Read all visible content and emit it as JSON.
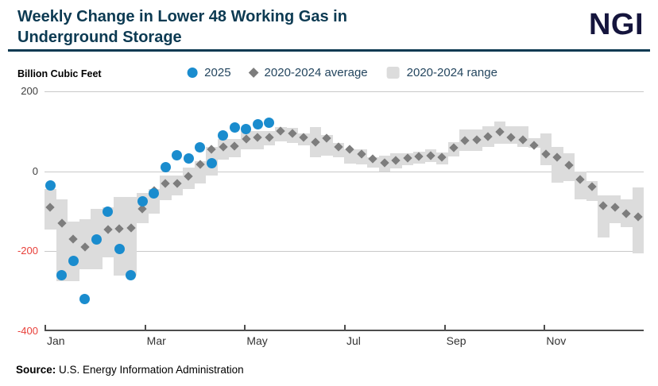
{
  "header": {
    "title": "Weekly Change in Lower 48 Working Gas in Underground Storage",
    "logo": "NGI"
  },
  "legend": {
    "axis_unit": "Billion Cubic Feet",
    "items": [
      {
        "label": "2025",
        "marker": "circle-icon",
        "color": "#1a8cce"
      },
      {
        "label": "2020-2024 average",
        "marker": "diamond-icon",
        "color": "#7d7d7d"
      },
      {
        "label": "2020-2024 range",
        "marker": "square-icon",
        "color": "#dcdcdc"
      }
    ]
  },
  "chart_data": {
    "type": "scatter",
    "title": "Weekly Change in Lower 48 Working Gas in Underground Storage",
    "ylabel": "Billion Cubic Feet",
    "ylim": [
      -400,
      200
    ],
    "yticks": [
      200,
      0,
      -200,
      -400
    ],
    "grid": "horizontal",
    "legend_position": "top-center",
    "weeks": 52,
    "months_total": 12,
    "x_axis": {
      "labels": [
        "Jan",
        "Mar",
        "May",
        "Jul",
        "Sep",
        "Nov"
      ],
      "month_index": [
        0,
        2,
        4,
        6,
        8,
        10
      ]
    },
    "series": [
      {
        "name": "2025",
        "type": "points",
        "marker": "circle",
        "color": "#1a8cce",
        "values": [
          -35,
          -260,
          -225,
          -320,
          -170,
          -100,
          -195,
          -260,
          -75,
          -55,
          10,
          40,
          33,
          60,
          20,
          90,
          110,
          105,
          118,
          122
        ]
      },
      {
        "name": "2020-2024 average",
        "type": "points",
        "marker": "diamond",
        "color": "#7d7d7d",
        "values": [
          -90,
          -130,
          -170,
          -190,
          -170,
          -145,
          -143,
          -142,
          -94,
          -48,
          -30,
          -30,
          -13,
          18,
          55,
          60,
          62,
          80,
          85,
          85,
          100,
          95,
          85,
          72,
          82,
          60,
          54,
          44,
          32,
          22,
          28,
          33,
          38,
          40,
          35,
          58,
          76,
          78,
          87,
          98,
          85,
          79,
          64,
          44,
          36,
          16,
          -21,
          -39,
          -86,
          -91,
          -106,
          -114
        ]
      },
      {
        "name": "2020-2024 range",
        "type": "band",
        "color": "#dcdcdc",
        "min": [
          -145,
          -275,
          -275,
          -245,
          -245,
          -215,
          -260,
          -260,
          -130,
          -105,
          -72,
          -60,
          -45,
          -30,
          -10,
          30,
          35,
          55,
          55,
          65,
          75,
          70,
          65,
          35,
          40,
          35,
          20,
          18,
          10,
          0,
          8,
          15,
          20,
          23,
          18,
          38,
          50,
          50,
          60,
          68,
          68,
          60,
          58,
          15,
          -28,
          -25,
          -70,
          -75,
          -165,
          -130,
          -140,
          -205
        ],
        "max": [
          -45,
          -70,
          -125,
          -120,
          -95,
          -90,
          -65,
          -65,
          -55,
          -45,
          -10,
          -10,
          10,
          25,
          60,
          80,
          80,
          100,
          100,
          100,
          110,
          108,
          95,
          110,
          90,
          70,
          55,
          55,
          35,
          40,
          45,
          45,
          50,
          55,
          48,
          72,
          105,
          105,
          113,
          125,
          113,
          113,
          82,
          95,
          60,
          45,
          0,
          -25,
          -60,
          -60,
          -70,
          -40
        ]
      }
    ],
    "colors": {
      "points_2025": "#1a8cce",
      "average": "#7d7d7d",
      "range": "#dcdcdc",
      "tick_positive": "#404040",
      "tick_negative": "#e8403a",
      "gridline": "#c9c9c9",
      "axis_line": "#4d4d4d",
      "title": "#0c3a52",
      "logo": "#15153d"
    }
  },
  "footer": {
    "source_label": "Source:",
    "source_text": " U.S. Energy Information Administration"
  }
}
